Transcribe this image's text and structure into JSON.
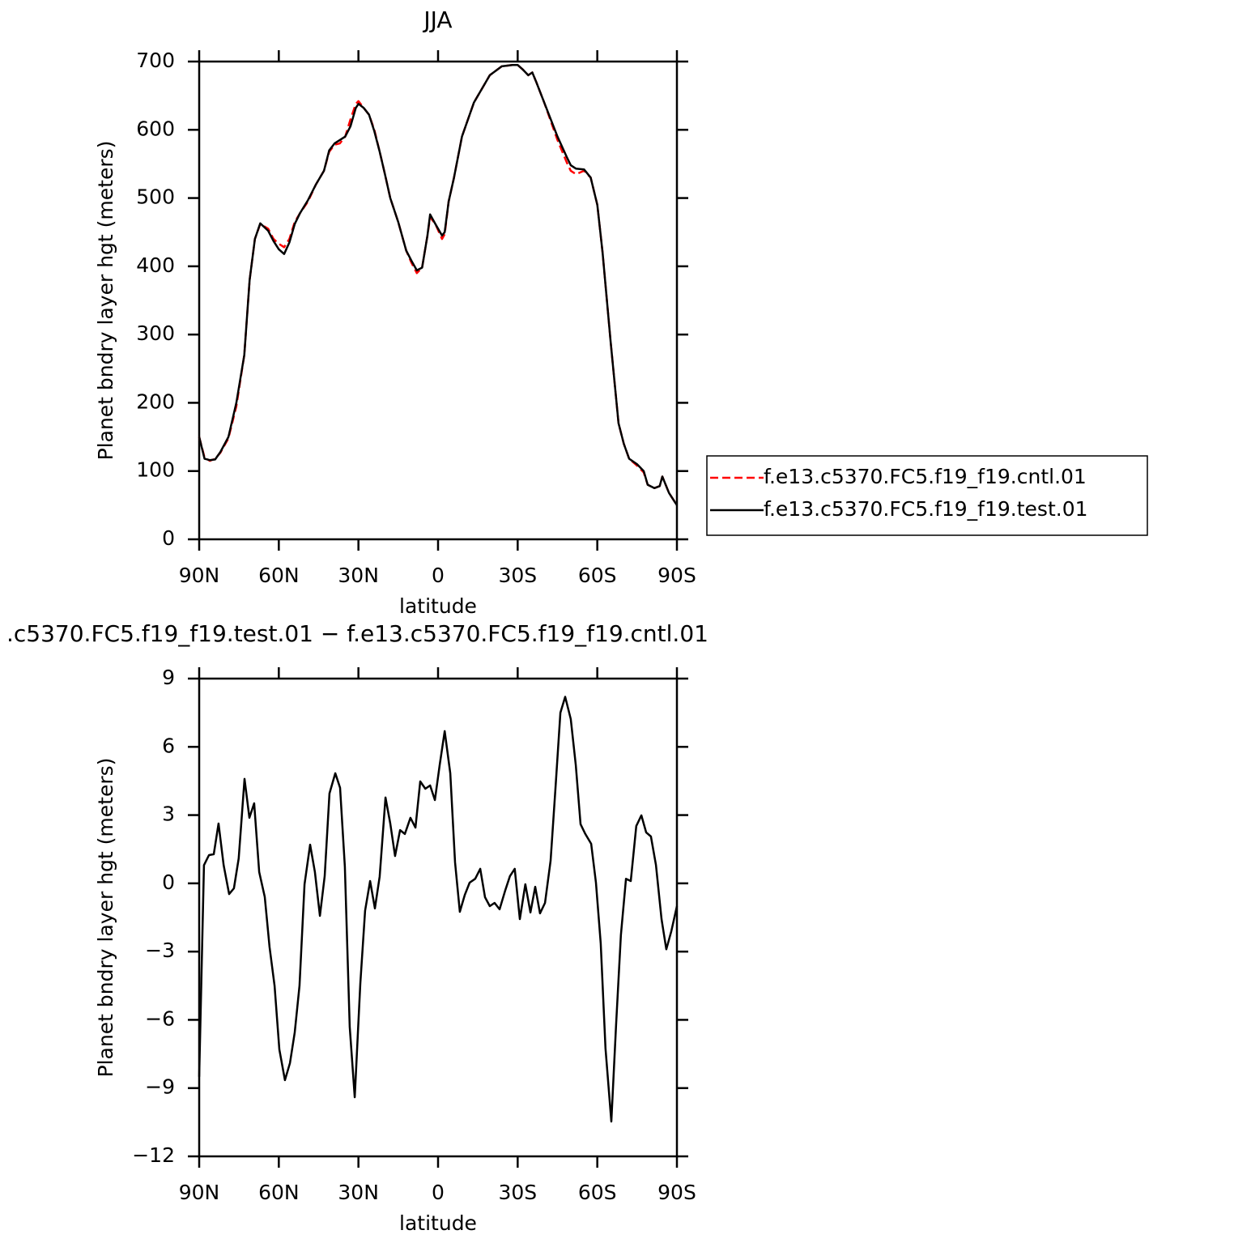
{
  "chart_data": [
    {
      "type": "line",
      "title": "JJA",
      "x_label": "latitude",
      "y_label": "Planet bndry layer hgt (meters)",
      "x": [
        90,
        88,
        86,
        84,
        82,
        79,
        76,
        73,
        71,
        69,
        67,
        64,
        62,
        60,
        58,
        56,
        54,
        52,
        49,
        46,
        43,
        41,
        39,
        37,
        35,
        33,
        31,
        30,
        28,
        26,
        24,
        22,
        20,
        18,
        15,
        12,
        10,
        8,
        6,
        4,
        3,
        1,
        -1.5,
        -2.5,
        -4,
        -6,
        -9,
        -13.5,
        -19.5,
        -24,
        -28,
        -30,
        -32,
        -34,
        -35.5,
        -37,
        -40,
        -45,
        -48.5,
        -50,
        -52,
        -55,
        -57.5,
        -60,
        -62,
        -65,
        -68,
        -70,
        -72,
        -75,
        -77.5,
        -79,
        -81.5,
        -83.5,
        -84.5,
        -87,
        -90
      ],
      "series": [
        {
          "name": "f.e13.c5370.FC5.f19_f19.cntl.01",
          "color": "#ff0000",
          "dashed": true,
          "values": [
            150,
            120,
            115,
            118,
            127,
            148,
            195,
            270,
            380,
            440,
            462,
            455,
            440,
            433,
            428,
            440,
            465,
            478,
            495,
            520,
            540,
            568,
            578,
            580,
            590,
            615,
            638,
            642,
            632,
            622,
            600,
            568,
            535,
            500,
            465,
            423,
            405,
            390,
            398,
            445,
            472,
            462,
            440,
            447,
            495,
            530,
            590,
            640,
            680,
            693,
            695,
            695,
            688,
            680,
            684,
            670,
            640,
            585,
            552,
            540,
            535,
            540,
            530,
            490,
            420,
            290,
            170,
            140,
            118,
            108,
            98,
            80,
            75,
            78,
            92,
            68,
            50
          ]
        },
        {
          "name": "f.e13.c5370.FC5.f19_f19.test.01",
          "color": "#000000",
          "dashed": false,
          "values": [
            150,
            118,
            116,
            117,
            128,
            150,
            200,
            270,
            380,
            440,
            463,
            452,
            437,
            425,
            418,
            435,
            462,
            478,
            497,
            520,
            540,
            570,
            580,
            585,
            590,
            605,
            632,
            638,
            632,
            622,
            598,
            568,
            535,
            500,
            465,
            423,
            408,
            394,
            398,
            445,
            476,
            462,
            445,
            450,
            495,
            530,
            590,
            640,
            680,
            693,
            695,
            695,
            688,
            680,
            684,
            670,
            640,
            590,
            560,
            548,
            543,
            542,
            530,
            490,
            420,
            290,
            170,
            140,
            118,
            110,
            100,
            80,
            75,
            78,
            92,
            68,
            50
          ]
        }
      ],
      "xlim": [
        90,
        -90
      ],
      "xticks": [
        {
          "value": 90,
          "label": "90N"
        },
        {
          "value": 60,
          "label": "60N"
        },
        {
          "value": 30,
          "label": "30N"
        },
        0,
        {
          "value": -30,
          "label": "30S"
        },
        {
          "value": -60,
          "label": "60S"
        },
        {
          "value": -90,
          "label": "90S"
        }
      ],
      "ylim": [
        0,
        700
      ],
      "yticks": [
        0,
        100,
        200,
        300,
        400,
        500,
        600,
        700
      ],
      "legend": "right"
    },
    {
      "type": "line",
      "title": ".c5370.FC5.f19_f19.test.01 − f.e13.c5370.FC5.f19_f19.cntl.01",
      "x_label": "latitude",
      "y_label": "Planet bndry layer hgt (meters)",
      "x": [
        90,
        88.2,
        86.3,
        84.5,
        82.7,
        80.8,
        78.7,
        76.9,
        75.1,
        72.9,
        71.1,
        69.3,
        67.4,
        65.3,
        63.5,
        61.6,
        59.8,
        57.7,
        55.8,
        54,
        52.2,
        50.3,
        48.2,
        46.4,
        44.5,
        42.7,
        40.9,
        38.7,
        36.9,
        35.1,
        33.3,
        31.4,
        29.3,
        27.5,
        25.6,
        23.8,
        22,
        19.8,
        18,
        16.2,
        14.3,
        12.5,
        10.4,
        8.5,
        6.7,
        4.8,
        3,
        1.2,
        -0.6,
        -2.5,
        -4.6,
        -6.4,
        -8.2,
        -10.1,
        -11.9,
        -14,
        -15.9,
        -17.7,
        -19.5,
        -21.3,
        -23.2,
        -25.3,
        -27.1,
        -28.9,
        -30.8,
        -32.9,
        -34.8,
        -36.6,
        -38.4,
        -40.3,
        -42.4,
        -44.2,
        -46.1,
        -47.9,
        -50,
        -51.9,
        -53.7,
        -55.5,
        -57.7,
        -59.5,
        -61.3,
        -63.1,
        -65.3,
        -67.1,
        -68.9,
        -70.8,
        -72.6,
        -74.7,
        -76.6,
        -78.4,
        -80.2,
        -82.1,
        -84.2,
        -86,
        -87.9,
        -90
      ],
      "values": [
        -8.5,
        0.8,
        1.24,
        1.28,
        2.63,
        0.8,
        -0.47,
        -0.22,
        1.1,
        4.59,
        2.88,
        3.52,
        0.5,
        -0.6,
        -2.8,
        -4.5,
        -7.3,
        -8.65,
        -7.9,
        -6.55,
        -4.5,
        -0.04,
        1.7,
        0.5,
        -1.43,
        0.32,
        3.95,
        4.84,
        4.2,
        0.74,
        -6.3,
        -9.4,
        -4.4,
        -1.2,
        0.1,
        -1.1,
        0.3,
        3.77,
        2.63,
        1.2,
        2.34,
        2.17,
        2.88,
        2.45,
        4.48,
        4.16,
        4.3,
        3.66,
        5.2,
        6.69,
        4.84,
        0.92,
        -1.25,
        -0.5,
        0.03,
        0.2,
        0.64,
        -0.61,
        -1,
        -0.86,
        -1.14,
        -0.32,
        0.32,
        0.64,
        -1.57,
        -0.04,
        -1.28,
        -0.15,
        -1.32,
        -0.86,
        1,
        4.12,
        7.5,
        8.2,
        7.22,
        5.2,
        2.6,
        2.17,
        1.74,
        0.03,
        -2.64,
        -7.26,
        -10.47,
        -6.2,
        -2.28,
        0.2,
        0.1,
        2.52,
        2.99,
        2.24,
        2.06,
        0.81,
        -1.57,
        -2.9,
        -2.1,
        -1
      ],
      "color": "#000000",
      "xlim": [
        90,
        -90
      ],
      "xticks": [
        {
          "value": 90,
          "label": "90N"
        },
        {
          "value": 60,
          "label": "60N"
        },
        {
          "value": 30,
          "label": "30N"
        },
        0,
        {
          "value": -30,
          "label": "30S"
        },
        {
          "value": -60,
          "label": "60S"
        },
        {
          "value": -90,
          "label": "90S"
        }
      ],
      "ylim": [
        -12,
        9
      ],
      "yticks": [
        {
          "value": -12,
          "label": "−12"
        },
        {
          "value": -9,
          "label": "−9"
        },
        {
          "value": -6,
          "label": "−6"
        },
        {
          "value": -3,
          "label": "−3"
        },
        0,
        3,
        6,
        9
      ]
    }
  ]
}
